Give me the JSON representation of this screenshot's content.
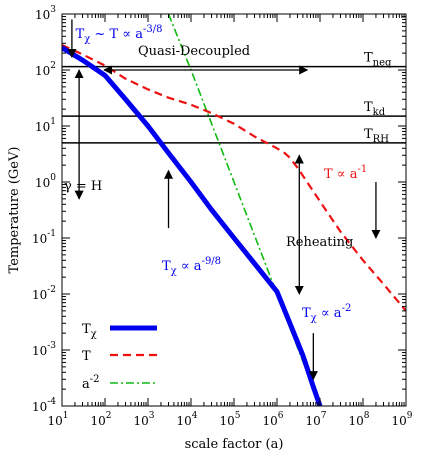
{
  "chart_data": {
    "type": "line",
    "title": "",
    "xlabel": "scale factor (a)",
    "ylabel": "Temperature (GeV)",
    "xscale": "log",
    "yscale": "log",
    "xlim": [
      10,
      1000000000
    ],
    "ylim": [
      0.0001,
      1000
    ],
    "grid": false,
    "legend": "bottom-left",
    "x_ticks": [
      {
        "base": "10",
        "exp": "1"
      },
      {
        "base": "10",
        "exp": "2"
      },
      {
        "base": "10",
        "exp": "3"
      },
      {
        "base": "10",
        "exp": "4"
      },
      {
        "base": "10",
        "exp": "5"
      },
      {
        "base": "10",
        "exp": "6"
      },
      {
        "base": "10",
        "exp": "7"
      },
      {
        "base": "10",
        "exp": "8"
      },
      {
        "base": "10",
        "exp": "9"
      }
    ],
    "y_ticks": [
      {
        "base": "10",
        "exp": "-4"
      },
      {
        "base": "10",
        "exp": "-3"
      },
      {
        "base": "10",
        "exp": "-2"
      },
      {
        "base": "10",
        "exp": "-1"
      },
      {
        "base": "10",
        "exp": "0"
      },
      {
        "base": "10",
        "exp": "1"
      },
      {
        "base": "10",
        "exp": "2"
      },
      {
        "base": "10",
        "exp": "3"
      }
    ],
    "series": [
      {
        "key": "tchi",
        "name": "T",
        "name_sub": "χ",
        "color": "#0000ee",
        "style": "solid-thick",
        "x": [
          10,
          30,
          100,
          300,
          1000,
          3000,
          10000,
          30000,
          100000,
          300000,
          1000000,
          2000000,
          4000000,
          7000000,
          10000000
        ],
        "y": [
          250,
          150,
          80,
          30,
          10,
          3.3,
          1.0,
          0.32,
          0.1,
          0.035,
          0.011,
          0.003,
          0.0008,
          0.00022,
          0.0001
        ]
      },
      {
        "key": "t",
        "name": "T",
        "color": "#ee1111",
        "style": "dashed",
        "x": [
          10,
          30,
          100,
          300,
          1000,
          3000,
          10000,
          30000,
          100000,
          300000,
          1000000,
          1500000,
          2000000,
          3000000,
          5000000,
          10000000,
          30000000,
          100000000,
          300000000,
          1000000000
        ],
        "y": [
          280,
          190,
          120,
          70,
          45,
          32,
          24,
          17,
          11,
          6.5,
          4.0,
          3.3,
          2.7,
          1.8,
          1.0,
          0.45,
          0.13,
          0.04,
          0.015,
          0.005
        ]
      },
      {
        "key": "a2",
        "name": "a",
        "name_sup": "-2",
        "color": "#11bb11",
        "style": "dash-dot",
        "x": [
          3000,
          10000,
          100000,
          1000000,
          10000000
        ],
        "y": [
          1000,
          100,
          1.0,
          0.01,
          0.0001
        ]
      }
    ],
    "hlines": [
      {
        "y": 115,
        "label": "T",
        "sub": "neq"
      },
      {
        "y": 15,
        "label": "T",
        "sub": "kd"
      },
      {
        "y": 5,
        "label": "T",
        "sub": "RH"
      }
    ],
    "annotations": {
      "tchi_early": {
        "main": "T",
        "sub": "χ",
        "mid": " ~ T ∝ a",
        "sup": "-3/8"
      },
      "quasi": "Quasi-Decoupled",
      "gamma": "γ = H",
      "tchi_mid": {
        "main": "T",
        "sub": "χ",
        "mid": " ∝ a",
        "sup": "-9/8"
      },
      "reheating": "Reheating",
      "t_late": {
        "main": "T ∝ a",
        "sup": "-1"
      },
      "tchi_late": {
        "main": "T",
        "sub": "χ",
        "mid": " ∝ a",
        "sup": "-2"
      }
    },
    "arrows": [
      {
        "kind": "double-h",
        "x1": 10,
        "x2": 7000000,
        "y": 100
      },
      {
        "kind": "double-v",
        "x": 25,
        "y1": 100,
        "y2": 0.5
      },
      {
        "kind": "double-v",
        "x": 3300000,
        "y1": 3.0,
        "y2": 0.01
      },
      {
        "kind": "up",
        "x": 3000,
        "y_from": 0.15,
        "y_to": 1.6
      },
      {
        "kind": "down",
        "x": 200000000,
        "y_from": 1.0,
        "y_to": 0.1
      },
      {
        "kind": "down",
        "x": 7000000,
        "y_from": 0.002,
        "y_to": 0.0003
      },
      {
        "kind": "down",
        "x": 17,
        "y_from": 800,
        "y_to": 170
      }
    ]
  }
}
